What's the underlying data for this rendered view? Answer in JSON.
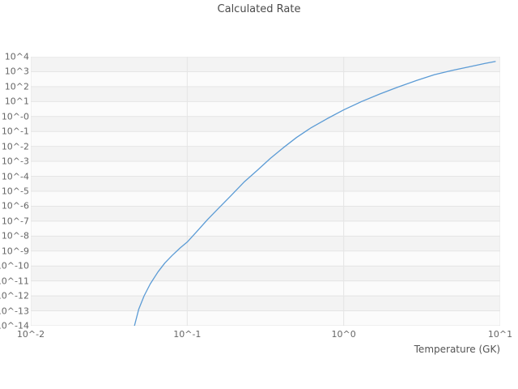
{
  "title": "Calculated Rate",
  "axes": {
    "x_label": "Temperature (GK)",
    "x_ticks": [
      "10^-2",
      "10^-1",
      "10^0",
      "10^1"
    ],
    "x_tick_exponents": [
      -2,
      -1,
      0,
      1
    ],
    "y_ticks": [
      "10^4",
      "10^3",
      "10^2",
      "10^1",
      "10^-0",
      "10^-1",
      "10^-2",
      "10^-3",
      "10^-4",
      "10^-5",
      "10^-6",
      "10^-7",
      "10^-8",
      "10^-9",
      "10^-10",
      "10^-11",
      "10^-12",
      "10^-13",
      "10^-14"
    ],
    "y_tick_exponents": [
      4,
      3,
      2,
      1,
      0,
      -1,
      -2,
      -3,
      -4,
      -5,
      -6,
      -7,
      -8,
      -9,
      -10,
      -11,
      -12,
      -13,
      -14
    ]
  },
  "style": {
    "line_color": "#5b9bd5",
    "band_color_a": "#f3f3f3",
    "band_color_b": "#fbfbfb",
    "grid_color": "#e5e5e5",
    "plot_bg": "#f8f8f8"
  },
  "chart_data": {
    "type": "line",
    "title": "Calculated Rate",
    "xlabel": "Temperature (GK)",
    "ylabel": "",
    "x_scale": "log",
    "y_scale": "log",
    "xlim": [
      0.01,
      10
    ],
    "ylim": [
      1e-14,
      10000.0
    ],
    "grid": true,
    "legend": false,
    "series": [
      {
        "name": "Calculated Rate",
        "x": [
          0.046,
          0.049,
          0.053,
          0.058,
          0.065,
          0.072,
          0.08,
          0.09,
          0.1,
          0.115,
          0.135,
          0.16,
          0.19,
          0.23,
          0.28,
          0.34,
          0.41,
          0.5,
          0.62,
          0.78,
          1.0,
          1.3,
          1.7,
          2.2,
          2.9,
          3.8,
          5.0,
          6.5,
          8.0,
          9.3
        ],
        "y": [
          1e-14,
          1.3e-13,
          1e-12,
          6.3e-12,
          4e-11,
          1.6e-10,
          5e-10,
          1.6e-09,
          4e-09,
          2e-08,
          1.3e-07,
          8e-07,
          5e-06,
          4e-05,
          0.00025,
          0.0016,
          0.008,
          0.04,
          0.18,
          0.7,
          2.8,
          10,
          32,
          90,
          250,
          630,
          1250,
          2250,
          3550,
          4800
        ]
      }
    ]
  }
}
